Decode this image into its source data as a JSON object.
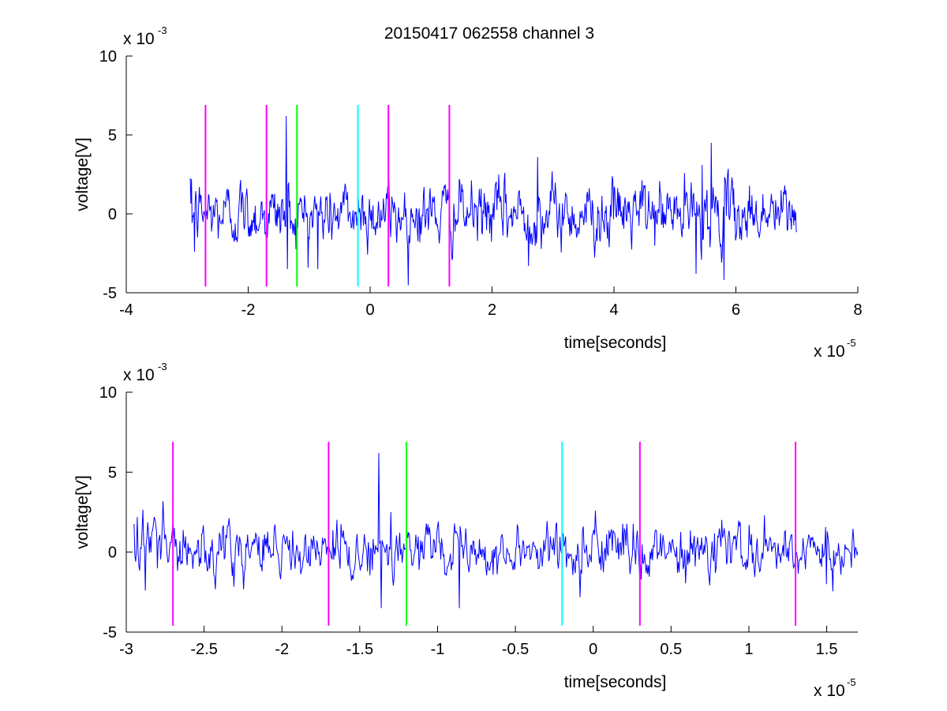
{
  "figure_title": "20150417 062558 channel 3",
  "chart_data": [
    {
      "type": "line",
      "title": "20150417 062558 channel 3",
      "xlabel": "time[seconds]",
      "ylabel": "voltage[V]",
      "xlim": [
        -4e-05,
        8e-05
      ],
      "ylim": [
        -0.005,
        0.01
      ],
      "x_ticks": [
        -4,
        -2,
        0,
        2,
        4,
        6,
        8
      ],
      "y_ticks": [
        -5,
        0,
        5,
        10
      ],
      "x_multiplier_text": "x 10",
      "x_multiplier_exp": "-5",
      "y_multiplier_text": "x 10",
      "y_multiplier_exp": "-3",
      "grid": false,
      "series": [
        {
          "color": "#0000ff",
          "x_start": -2.95e-05,
          "x_end": 7e-05,
          "samples": 1000,
          "noise_std": 0.0009,
          "features": [
            {
              "x": -2.93e-05,
              "y": 0.0022
            },
            {
              "x": -2.88e-05,
              "y": -0.0024
            },
            {
              "x": -1.38e-05,
              "y": 0.0062
            },
            {
              "x": -1.36e-05,
              "y": -0.0035
            },
            {
              "x": -8.6e-06,
              "y": -0.0035
            },
            {
              "x": 2.75e-05,
              "y": 0.0036
            },
            {
              "x": 2.6e-05,
              "y": -0.0033
            },
            {
              "x": 5.35e-05,
              "y": -0.0038
            },
            {
              "x": 5.6e-05,
              "y": 0.0045
            },
            {
              "x": 5.8e-05,
              "y": -0.0042
            },
            {
              "x": 5.45e-05,
              "y": 0.0031
            }
          ]
        }
      ],
      "markers": [
        {
          "x": -2.7e-05,
          "color": "#ff00ff",
          "y0": -0.0046,
          "y1": 0.0069
        },
        {
          "x": -1.7e-05,
          "color": "#ff00ff",
          "y0": -0.0046,
          "y1": 0.0069
        },
        {
          "x": -1.2e-05,
          "color": "#00ff00",
          "y0": -0.0046,
          "y1": 0.0069
        },
        {
          "x": -2e-06,
          "color": "#00ffff",
          "y0": -0.0046,
          "y1": 0.0069
        },
        {
          "x": 3e-06,
          "color": "#ff00ff",
          "y0": -0.0046,
          "y1": 0.0069
        },
        {
          "x": 1.3e-05,
          "color": "#ff00ff",
          "y0": -0.0046,
          "y1": 0.0069
        }
      ]
    },
    {
      "type": "line",
      "title": "",
      "xlabel": "time[seconds]",
      "ylabel": "voltage[V]",
      "xlim": [
        -3e-05,
        1.7e-05
      ],
      "ylim": [
        -0.005,
        0.01
      ],
      "x_ticks": [
        -3,
        -2.5,
        -2,
        -1.5,
        -1,
        -0.5,
        0,
        0.5,
        1,
        1.5
      ],
      "y_ticks": [
        -5,
        0,
        5,
        10
      ],
      "x_multiplier_text": "x 10",
      "x_multiplier_exp": "-5",
      "y_multiplier_text": "x 10",
      "y_multiplier_exp": "-3",
      "grid": false,
      "series": [
        {
          "color": "#0000ff",
          "x_start": -2.95e-05,
          "x_end": 1.7e-05,
          "samples": 900,
          "noise_std": 0.0008,
          "features": [
            {
              "x": -2.93e-05,
              "y": 0.0022
            },
            {
              "x": -2.88e-05,
              "y": -0.0024
            },
            {
              "x": -1.38e-05,
              "y": 0.0062
            },
            {
              "x": -1.36e-05,
              "y": -0.0035
            },
            {
              "x": -1.3e-05,
              "y": 0.0025
            },
            {
              "x": -8.6e-06,
              "y": -0.0035
            },
            {
              "x": 3e-06,
              "y": -0.0016
            },
            {
              "x": 1.1e-05,
              "y": 0.0023
            },
            {
              "x": 1.5e-05,
              "y": -0.002
            }
          ]
        }
      ],
      "markers": [
        {
          "x": -2.7e-05,
          "color": "#ff00ff",
          "y0": -0.0046,
          "y1": 0.0069
        },
        {
          "x": -1.7e-05,
          "color": "#ff00ff",
          "y0": -0.0046,
          "y1": 0.0069
        },
        {
          "x": -1.2e-05,
          "color": "#00ff00",
          "y0": -0.0046,
          "y1": 0.0069
        },
        {
          "x": -2e-06,
          "color": "#00ffff",
          "y0": -0.0046,
          "y1": 0.0069
        },
        {
          "x": 3e-06,
          "color": "#ff00ff",
          "y0": -0.0046,
          "y1": 0.0069
        },
        {
          "x": 1.3e-05,
          "color": "#ff00ff",
          "y0": -0.0046,
          "y1": 0.0069
        }
      ]
    }
  ]
}
